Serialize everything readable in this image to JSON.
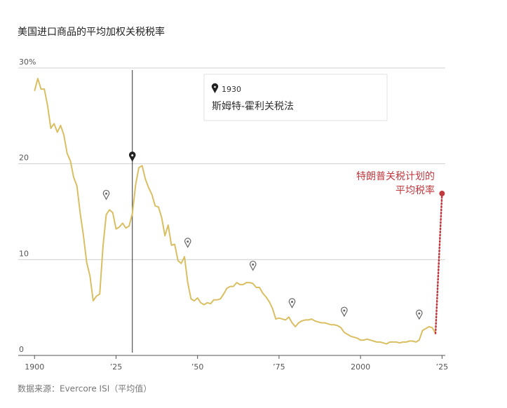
{
  "chart_data": {
    "type": "line",
    "title": "美国进口商品的平均加权关税税率",
    "source": "数据来源：Evercore ISI（平均值）",
    "x": [
      1900,
      1901,
      1902,
      1903,
      1904,
      1905,
      1906,
      1907,
      1908,
      1909,
      1910,
      1911,
      1912,
      1913,
      1914,
      1915,
      1916,
      1917,
      1918,
      1919,
      1920,
      1921,
      1922,
      1923,
      1924,
      1925,
      1926,
      1927,
      1928,
      1929,
      1930,
      1931,
      1932,
      1933,
      1934,
      1935,
      1936,
      1937,
      1938,
      1939,
      1940,
      1941,
      1942,
      1943,
      1944,
      1945,
      1946,
      1947,
      1948,
      1949,
      1950,
      1951,
      1952,
      1953,
      1954,
      1955,
      1956,
      1957,
      1958,
      1959,
      1960,
      1961,
      1962,
      1963,
      1964,
      1965,
      1966,
      1967,
      1968,
      1969,
      1970,
      1971,
      1972,
      1973,
      1974,
      1975,
      1976,
      1977,
      1978,
      1979,
      1980,
      1981,
      1982,
      1983,
      1984,
      1985,
      1986,
      1987,
      1988,
      1989,
      1990,
      1991,
      1992,
      1993,
      1994,
      1995,
      1996,
      1997,
      1998,
      1999,
      2000,
      2001,
      2002,
      2003,
      2004,
      2005,
      2006,
      2007,
      2008,
      2009,
      2010,
      2011,
      2012,
      2013,
      2014,
      2015,
      2016,
      2017,
      2018,
      2019,
      2020,
      2021,
      2022,
      2023
    ],
    "values": [
      27.6,
      28.9,
      27.8,
      27.8,
      26.1,
      23.7,
      24.2,
      23.3,
      24.0,
      23.0,
      21.1,
      20.3,
      18.6,
      17.7,
      14.9,
      12.5,
      9.7,
      8.3,
      5.7,
      6.2,
      6.4,
      11.4,
      14.7,
      15.2,
      14.9,
      13.2,
      13.4,
      13.8,
      13.3,
      13.5,
      14.8,
      17.8,
      19.6,
      19.8,
      18.4,
      17.5,
      16.8,
      15.6,
      15.5,
      14.4,
      12.5,
      13.6,
      11.5,
      11.6,
      9.9,
      9.6,
      10.3,
      7.6,
      5.9,
      5.7,
      6.0,
      5.5,
      5.3,
      5.5,
      5.4,
      5.8,
      5.8,
      5.9,
      6.4,
      7.0,
      7.2,
      7.2,
      7.6,
      7.4,
      7.4,
      7.6,
      7.6,
      7.5,
      7.1,
      7.1,
      6.5,
      6.1,
      5.6,
      4.9,
      3.8,
      3.9,
      3.8,
      3.7,
      4.0,
      3.4,
      3.0,
      3.4,
      3.6,
      3.7,
      3.7,
      3.8,
      3.6,
      3.5,
      3.4,
      3.4,
      3.3,
      3.2,
      3.2,
      3.1,
      2.9,
      2.4,
      2.2,
      2.0,
      1.9,
      1.8,
      1.6,
      1.6,
      1.7,
      1.6,
      1.5,
      1.4,
      1.4,
      1.3,
      1.2,
      1.4,
      1.4,
      1.4,
      1.3,
      1.4,
      1.4,
      1.5,
      1.5,
      1.4,
      1.6,
      2.6,
      2.8,
      3.0,
      2.9,
      2.3
    ],
    "color": "#d9bf62",
    "xlim": [
      1895,
      2026
    ],
    "ylim": [
      0,
      30
    ],
    "xticks": [
      1900,
      {
        "value": 1925,
        "label": "’25"
      },
      {
        "value": 1950,
        "label": "’50"
      },
      {
        "value": 1975,
        "label": "’75"
      },
      2000,
      {
        "value": 2025,
        "label": "’25"
      }
    ],
    "yticks": [
      0,
      10,
      20,
      {
        "value": 30,
        "label": "30%"
      }
    ],
    "grid": true,
    "events": [
      {
        "x": 1922,
        "value": 16.3
      },
      {
        "x": 1930,
        "value": 20.3,
        "label": "斯姆特-霍利关税法"
      },
      {
        "x": 1947,
        "value": 11.3
      },
      {
        "x": 1967,
        "value": 8.9
      },
      {
        "x": 1979,
        "value": 5.0
      },
      {
        "x": 1995,
        "value": 4.1
      },
      {
        "x": 2018,
        "value": 3.8
      }
    ],
    "proposal": {
      "x": 2025,
      "value": 16.9,
      "color": "#c0393f",
      "lines": [
        "特朗普关税计划的",
        "平均税率"
      ]
    }
  }
}
